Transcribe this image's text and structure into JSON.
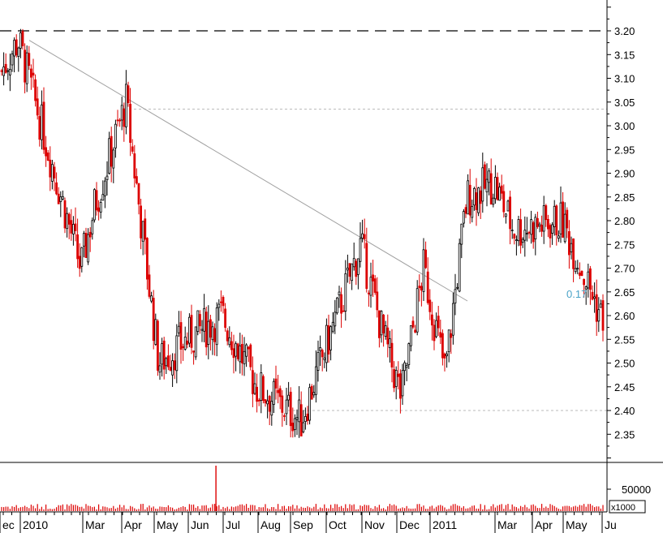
{
  "chart_data": {
    "type": "candlestick",
    "colors": {
      "up_candle": "#000000",
      "down_candle": "#dd0000",
      "volume": "#dd0000",
      "trendline": "#a0a0a0",
      "resistance_line": "#000000",
      "support_line": "#bbbbbb",
      "axis": "#000000",
      "annotation_text": "#4aa3c7"
    },
    "price_axis": {
      "ylim": [
        2.3,
        3.25
      ],
      "ticks": [
        "2.35",
        "2.40",
        "2.45",
        "2.50",
        "2.55",
        "2.60",
        "2.65",
        "2.70",
        "2.75",
        "2.80",
        "2.85",
        "2.90",
        "2.95",
        "3.00",
        "3.05",
        "3.10",
        "3.15",
        "3.20"
      ],
      "side": "right"
    },
    "volume_axis": {
      "ticks": [
        "50000"
      ],
      "unit_label": "x1000"
    },
    "time_axis": {
      "labels": [
        "ec",
        "2010",
        "Mar",
        "Apr",
        "May",
        "Jun",
        "Jul",
        "Aug",
        "Sep",
        "Oct",
        "Nov",
        "Dec",
        "2011",
        "Mar",
        "Apr",
        "May",
        "Ju"
      ],
      "month_index": [
        -0.55,
        0.4,
        1.5,
        2.5,
        3.5,
        4.5,
        5.5,
        6.5,
        7.5,
        8.5,
        9.5,
        10.5,
        11.5,
        13.5,
        14.5,
        15.5,
        16.5
      ]
    },
    "key_prices": [
      {
        "date": "2009-12",
        "price": 3.11
      },
      {
        "date": "2010-01-10",
        "price": 3.18
      },
      {
        "date": "2010-02",
        "price": 2.7
      },
      {
        "date": "2010-02-25",
        "price": 2.83
      },
      {
        "date": "2010-03-20",
        "price": 3.05
      },
      {
        "date": "2010-04-20",
        "price": 2.5
      },
      {
        "date": "2010-05",
        "price": 2.55
      },
      {
        "date": "2010-06",
        "price": 2.6
      },
      {
        "date": "2010-07",
        "price": 2.45
      },
      {
        "date": "2010-08-25",
        "price": 2.38
      },
      {
        "date": "2010-10-15",
        "price": 2.75
      },
      {
        "date": "2010-11-05",
        "price": 2.55
      },
      {
        "date": "2010-11-20",
        "price": 2.43
      },
      {
        "date": "2010-12-10",
        "price": 2.7
      },
      {
        "date": "2010-12-30",
        "price": 2.48
      },
      {
        "date": "2011-01-20",
        "price": 2.85
      },
      {
        "date": "2011-02-15",
        "price": 2.88
      },
      {
        "date": "2011-03-01",
        "price": 2.78
      },
      {
        "date": "2011-04-15",
        "price": 2.8
      },
      {
        "date": "2011-05-15",
        "price": 2.6
      },
      {
        "date": "2011-06-20",
        "price": 2.56
      }
    ],
    "volume_spike": {
      "date": "2010-06-25",
      "note": "largest volume bar"
    },
    "lines": {
      "resistance": 3.2,
      "upper_reference": 3.035,
      "support": 2.4,
      "trendline": [
        {
          "date": "2010-01-10",
          "price": 3.18
        },
        {
          "date": "2011-01-25",
          "price": 2.61
        }
      ]
    },
    "annotation": "0.17"
  }
}
